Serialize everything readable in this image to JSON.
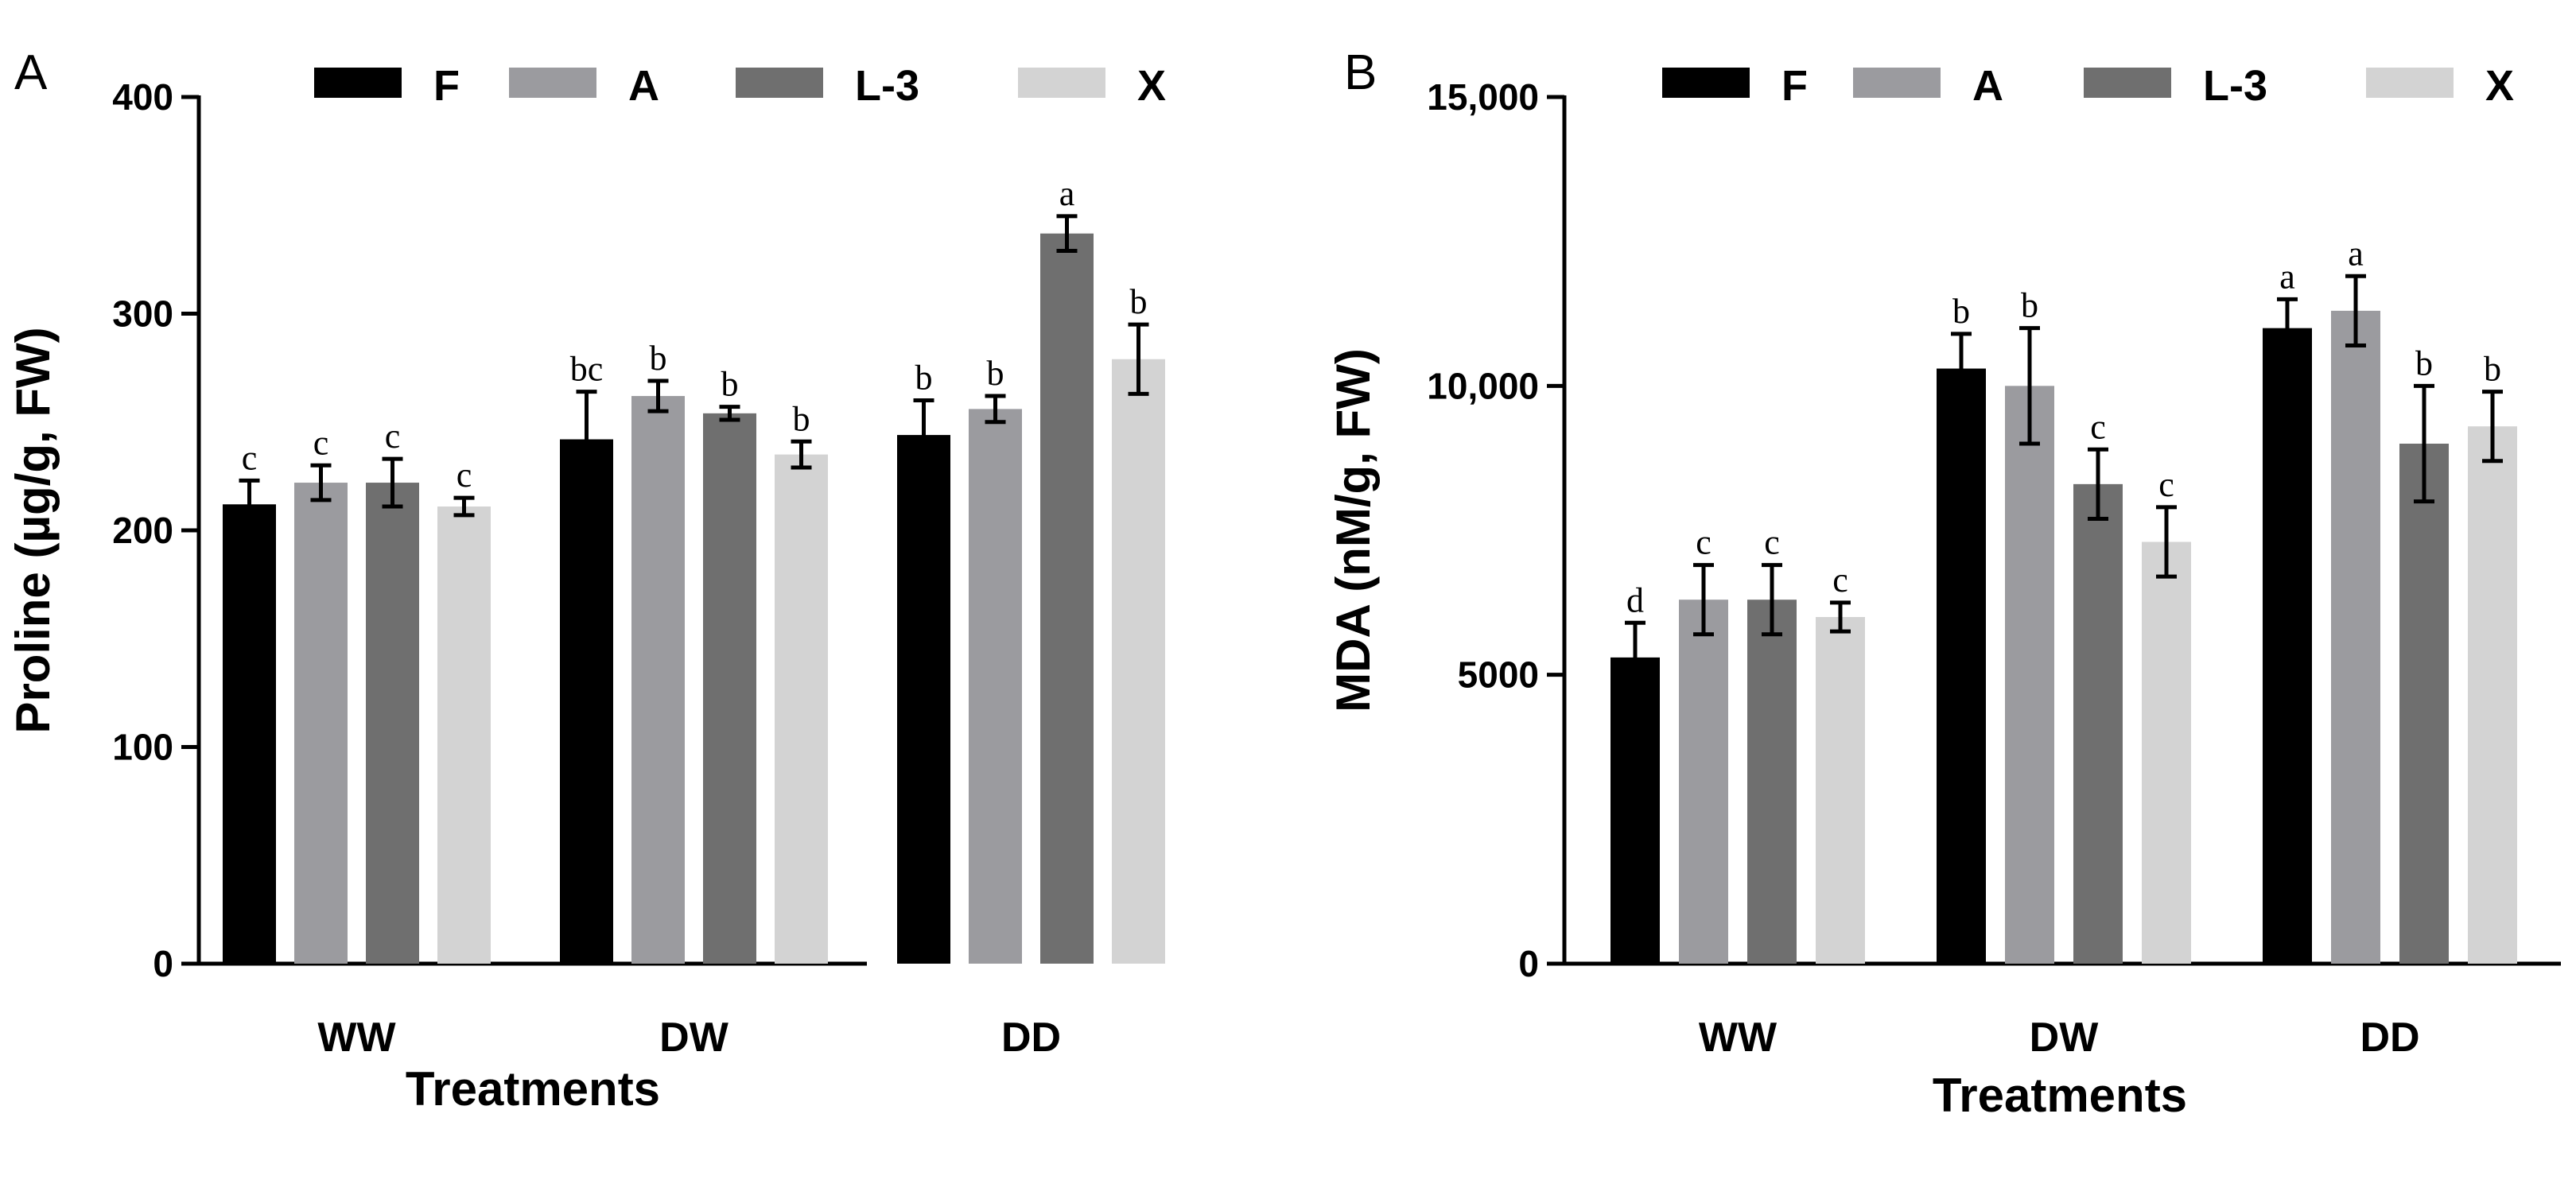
{
  "chart_data": [
    {
      "type": "bar",
      "panel_label": "A",
      "categories": [
        "WW",
        "DW",
        "DD"
      ],
      "xlabel": "Treatments",
      "ylabel": "Proline (µg/g, FW)",
      "ylim": [
        0,
        400
      ],
      "yticks": [
        0,
        100,
        200,
        300,
        400
      ],
      "ytick_labels": [
        "0",
        "100",
        "200",
        "300",
        "400"
      ],
      "legend_position": "top",
      "series": [
        {
          "name": "F",
          "color": "#000000",
          "values": [
            212,
            242,
            244
          ],
          "errors": [
            11,
            22,
            16
          ],
          "letters": [
            "c",
            "bc",
            "b"
          ]
        },
        {
          "name": "A",
          "color": "#9b9b9f",
          "values": [
            222,
            262,
            256
          ],
          "errors": [
            8,
            7,
            6
          ],
          "letters": [
            "c",
            "b",
            "b"
          ]
        },
        {
          "name": "L-3",
          "color": "#6f6f6f",
          "values": [
            222,
            254,
            337
          ],
          "errors": [
            11,
            3,
            8
          ],
          "letters": [
            "c",
            "b",
            "a"
          ]
        },
        {
          "name": "X",
          "color": "#d3d3d3",
          "values": [
            211,
            235,
            279
          ],
          "errors": [
            4,
            6,
            16
          ],
          "letters": [
            "c",
            "b",
            "b"
          ]
        }
      ]
    },
    {
      "type": "bar",
      "panel_label": "B",
      "categories": [
        "WW",
        "DW",
        "DD"
      ],
      "xlabel": "Treatments",
      "ylabel": "MDA (nM/g, FW)",
      "ylim": [
        0,
        15000
      ],
      "yticks": [
        0,
        5000,
        10000,
        15000
      ],
      "ytick_labels": [
        "0",
        "5000",
        "10,000",
        "15,000"
      ],
      "legend_position": "top",
      "series": [
        {
          "name": "F",
          "color": "#000000",
          "values": [
            5300,
            10300,
            11000
          ],
          "errors": [
            600,
            600,
            500
          ],
          "letters": [
            "d",
            "b",
            "a"
          ]
        },
        {
          "name": "A",
          "color": "#9b9b9f",
          "values": [
            6300,
            10000,
            11300
          ],
          "errors": [
            600,
            1000,
            600
          ],
          "letters": [
            "c",
            "b",
            "a"
          ]
        },
        {
          "name": "L-3",
          "color": "#6f6f6f",
          "values": [
            6300,
            8300,
            9000
          ],
          "errors": [
            600,
            600,
            1000
          ],
          "letters": [
            "c",
            "c",
            "b"
          ]
        },
        {
          "name": "X",
          "color": "#d3d3d3",
          "values": [
            6000,
            7300,
            9300
          ],
          "errors": [
            250,
            600,
            600
          ],
          "letters": [
            "c",
            "c",
            "b"
          ]
        }
      ]
    }
  ]
}
